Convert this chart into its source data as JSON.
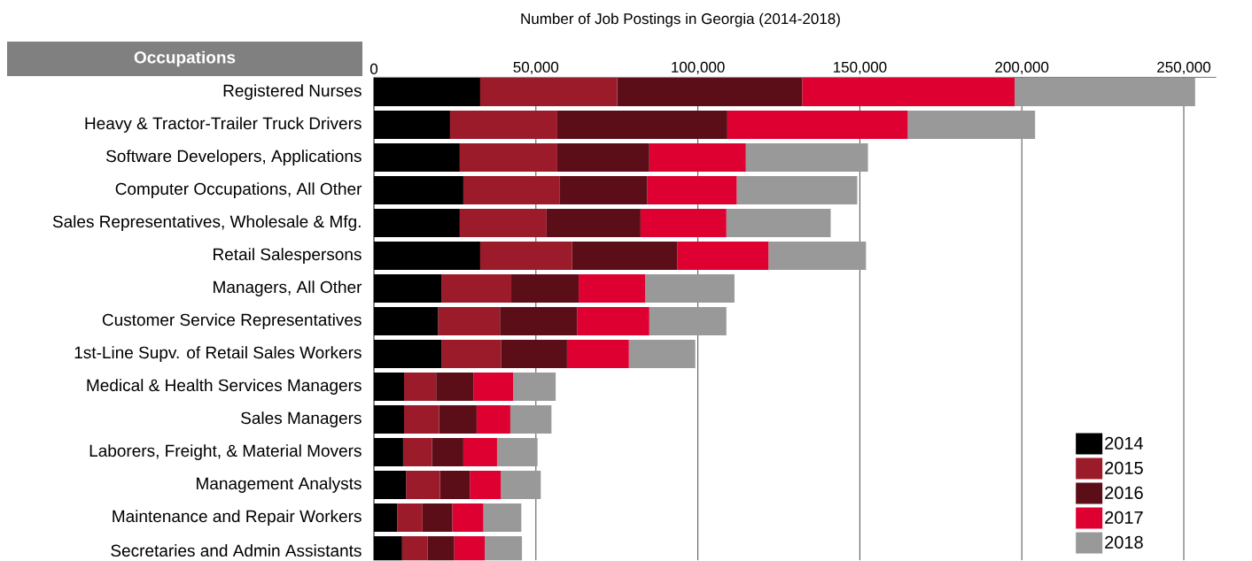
{
  "chart_data": {
    "type": "bar",
    "orientation": "horizontal",
    "stacked": true,
    "title": "Number of Job Postings in Georgia (2014-2018)",
    "ylabel": "Occupations",
    "categories": [
      "Registered Nurses",
      "Heavy & Tractor-Trailer Truck Drivers",
      "Software Developers, Applications",
      "Computer Occupations, All Other",
      "Sales Representatives, Wholesale & Mfg.",
      "Retail Salespersons",
      "Managers, All Other",
      "Customer Service Representatives",
      "1st-Line Supv. of Retail Sales Workers",
      "Medical & Health Services Managers",
      "Sales Managers",
      "Laborers, Freight, & Material Movers",
      "Management Analysts",
      "Maintenance and Repair Workers",
      "Secretaries and Admin Assistants"
    ],
    "series": [
      {
        "name": "2014",
        "color": "#000000",
        "values": [
          32800,
          23500,
          26500,
          27600,
          26500,
          32800,
          20800,
          19800,
          20800,
          9300,
          9300,
          9000,
          9900,
          7200,
          8700
        ]
      },
      {
        "name": "2015",
        "color": "#9b1b2a",
        "values": [
          42300,
          33100,
          30100,
          29800,
          26800,
          28400,
          21600,
          19100,
          18400,
          9900,
          10800,
          8900,
          10500,
          7800,
          7800
        ]
      },
      {
        "name": "2016",
        "color": "#5c0e18",
        "values": [
          57100,
          52500,
          28400,
          27000,
          29000,
          32500,
          20800,
          23800,
          20400,
          11600,
          11600,
          9700,
          9200,
          9200,
          8300
        ]
      },
      {
        "name": "2017",
        "color": "#de0030",
        "values": [
          65600,
          55700,
          29800,
          27600,
          26500,
          28100,
          20500,
          22300,
          19100,
          12200,
          10400,
          10400,
          9600,
          9600,
          9400
        ]
      },
      {
        "name": "2018",
        "color": "#999999",
        "values": [
          55700,
          39300,
          37700,
          37200,
          32200,
          30100,
          27600,
          23800,
          20500,
          13100,
          12700,
          12500,
          12300,
          11700,
          11500
        ]
      }
    ],
    "xlim": [
      0,
      260000
    ],
    "xticks": [
      0,
      {
        "value": 50000,
        "label": "50,000"
      },
      {
        "value": 100000,
        "label": "100,000"
      },
      {
        "value": 150000,
        "label": "150,000"
      },
      {
        "value": 200000,
        "label": "200,000"
      },
      {
        "value": 250000,
        "label": "250,000"
      }
    ],
    "grid": "x",
    "legend": "bottom right"
  }
}
